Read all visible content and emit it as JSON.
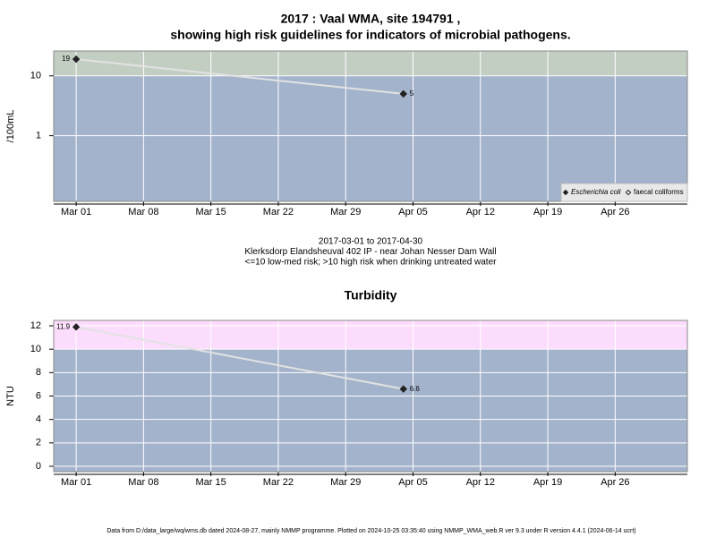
{
  "chart_data": [
    {
      "type": "line",
      "title": "2017 : Vaal WMA, site 194791 ,",
      "subtitle": "showing high risk guidelines for indicators of microbial pathogens.",
      "y_label": "/100mL",
      "log_y": true,
      "ylim": [
        0.08,
        26
      ],
      "yticks": [
        1,
        10
      ],
      "x": [
        "2017-03-01",
        "2017-04-04"
      ],
      "xlim": [
        "2017-02-26T16:00",
        "2017-05-03T12:00"
      ],
      "xticks": [
        {
          "value": "2017-03-01",
          "label": "Mar 01"
        },
        {
          "value": "2017-03-08",
          "label": "Mar 08"
        },
        {
          "value": "2017-03-15",
          "label": "Mar 15"
        },
        {
          "value": "2017-03-22",
          "label": "Mar 22"
        },
        {
          "value": "2017-03-29",
          "label": "Mar 29"
        },
        {
          "value": "2017-04-05",
          "label": "Apr 05"
        },
        {
          "value": "2017-04-12",
          "label": "Apr 12"
        },
        {
          "value": "2017-04-19",
          "label": "Apr 19"
        },
        {
          "value": "2017-04-26",
          "label": "Apr 26"
        }
      ],
      "grid": true,
      "background_color": "#a3b3cb",
      "threshold": 10,
      "high_risk_color": "#c3cec3",
      "line_color": "#e2e2e2",
      "legend": "bottom-right",
      "series": [
        {
          "name": "Escherichia coli",
          "color": "#222222",
          "filled": true,
          "values": [
            19,
            5
          ]
        },
        {
          "name": "faecal coliforms",
          "color": "#222222",
          "filled": false,
          "values": [
            null,
            null
          ]
        }
      ],
      "notes": [
        "2017-03-01 to 2017-04-30",
        "Klerksdorp Elandsheuval 402 IP - near Johan Nesser Dam Wall",
        "<=10 low-med risk; >10 high risk when drinking untreated water"
      ]
    },
    {
      "type": "line",
      "title": "Turbidity",
      "y_label": "NTU",
      "log_y": false,
      "ylim": [
        -0.46,
        12.46
      ],
      "yticks": [
        0,
        2,
        4,
        6,
        8,
        10,
        12
      ],
      "x": [
        "2017-03-01",
        "2017-04-04"
      ],
      "xlim": [
        "2017-02-26T16:00",
        "2017-05-03T12:00"
      ],
      "xticks": [
        {
          "value": "2017-03-01",
          "label": "Mar 01"
        },
        {
          "value": "2017-03-08",
          "label": "Mar 08"
        },
        {
          "value": "2017-03-15",
          "label": "Mar 15"
        },
        {
          "value": "2017-03-22",
          "label": "Mar 22"
        },
        {
          "value": "2017-03-29",
          "label": "Mar 29"
        },
        {
          "value": "2017-04-05",
          "label": "Apr 05"
        },
        {
          "value": "2017-04-12",
          "label": "Apr 12"
        },
        {
          "value": "2017-04-19",
          "label": "Apr 19"
        },
        {
          "value": "2017-04-26",
          "label": "Apr 26"
        }
      ],
      "grid": true,
      "background_color": "#a3b3cb",
      "threshold": 10,
      "high_risk_color": "#fcdcfc",
      "line_color": "#e2e2e2",
      "series": [
        {
          "name": "Turbidity",
          "color": "#222222",
          "filled": true,
          "values": [
            11.9,
            6.6
          ]
        }
      ]
    }
  ],
  "footer": "Data from D:/data_large/wq/wms.db dated 2024-08-27, mainly NMMP programme. Plotted on 2024-10-25 03:35:40 using NMMP_WMA_web.R ver 9.3 under R version 4.4.1 (2024-06-14 ucrt)"
}
